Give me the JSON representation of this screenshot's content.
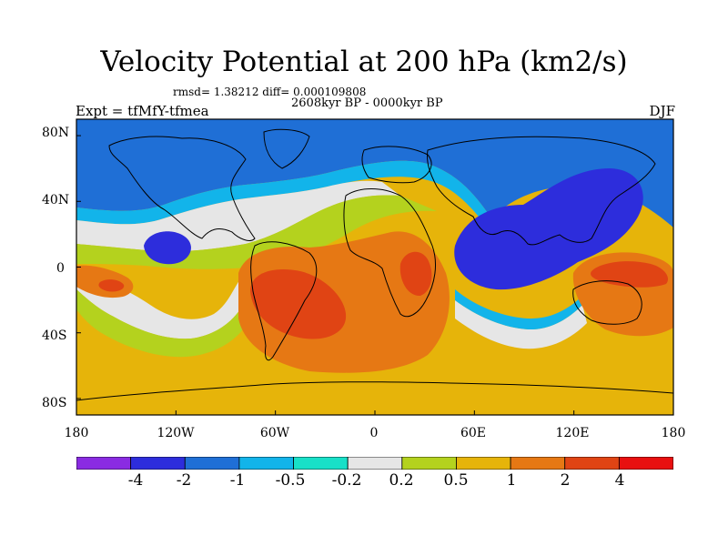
{
  "figure": {
    "title": "Velocity Potential at 200 hPa (km2/s)",
    "stats": "rmsd= 1.38212 diff= 0.000109808",
    "period": "2608kyr BP - 0000kyr BP",
    "experiment": "Expt = tfMfY-tfmea",
    "season": "DJF"
  },
  "chart_data": {
    "type": "contour-map",
    "variable": "Velocity Potential at 200 hPa",
    "units": "km2/s",
    "projection": "cylindrical equidistant",
    "x_axis": {
      "range": [
        -180,
        180
      ],
      "ticks": [
        -180,
        -120,
        -60,
        0,
        60,
        120,
        180
      ],
      "labels": [
        "180",
        "120W",
        "60W",
        "0",
        "60E",
        "120E",
        "180"
      ]
    },
    "y_axis": {
      "range": [
        -90,
        90
      ],
      "ticks": [
        80,
        40,
        0,
        -40,
        -80
      ],
      "labels": [
        "80N",
        "40N",
        "0",
        "40S",
        "80S"
      ]
    },
    "levels": [
      "-4",
      "-2",
      "-1",
      "-0.5",
      "-0.2",
      "0.2",
      "0.5",
      "1",
      "2",
      "4"
    ],
    "colors": [
      "#8a2be2",
      "#2d2ddc",
      "#1f6fd6",
      "#12b4ea",
      "#18e0c8",
      "#e6e6e6",
      "#b4d21e",
      "#e6b40a",
      "#e67814",
      "#e04414",
      "#e81010"
    ],
    "features": [
      {
        "name": "negative center",
        "region": "Asia / western Pacific",
        "approx_lon": 105,
        "approx_lat": 10,
        "level": "-2"
      },
      {
        "name": "negative center",
        "region": "eastern Pacific",
        "approx_lon": -125,
        "approx_lat": 15,
        "level": "-2"
      },
      {
        "name": "positive center",
        "region": "South America / South Atlantic",
        "approx_lon": -45,
        "approx_lat": -20,
        "level": "2"
      },
      {
        "name": "positive center",
        "region": "Australia / SW Pacific",
        "approx_lon": 145,
        "approx_lat": -5,
        "level": "2"
      },
      {
        "name": "positive center",
        "region": "central South Pacific",
        "approx_lon": -160,
        "approx_lat": -10,
        "level": "2"
      }
    ]
  }
}
